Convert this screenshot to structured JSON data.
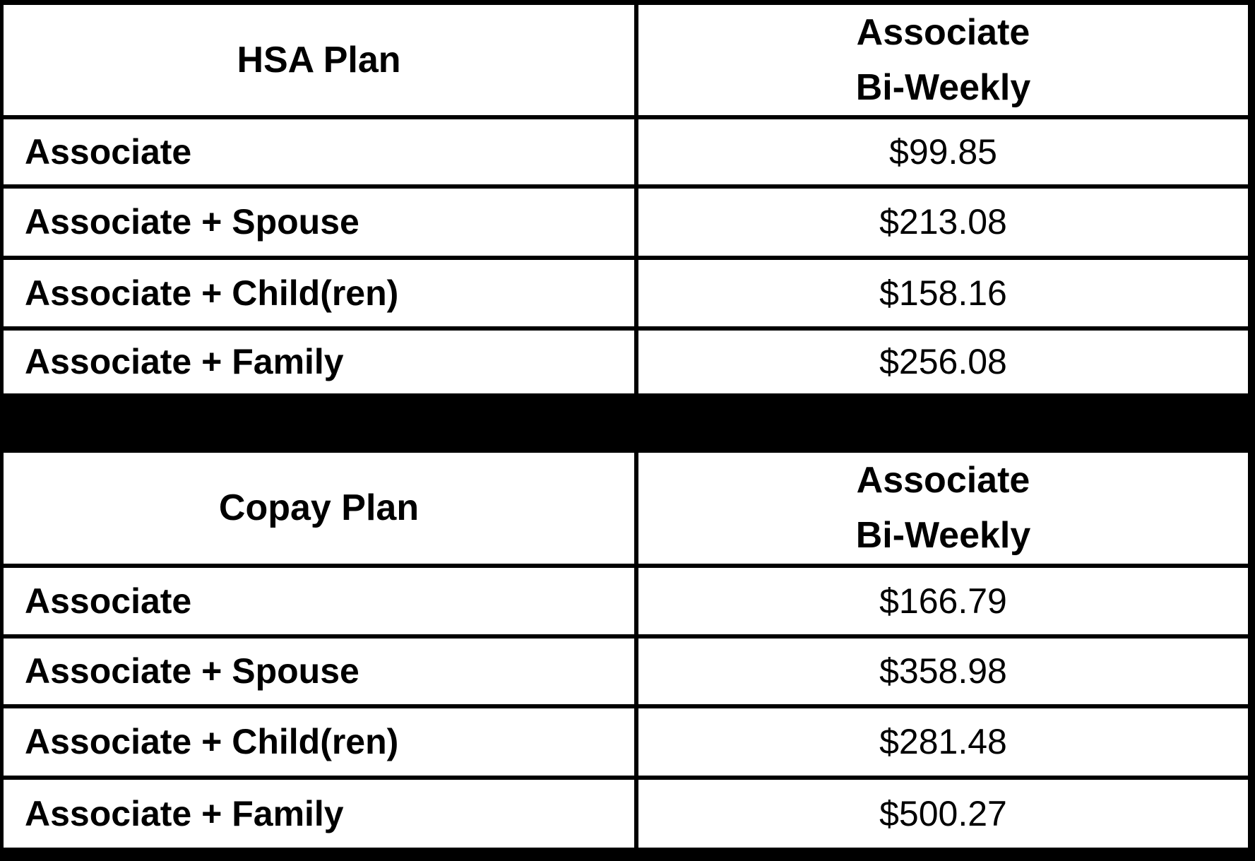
{
  "colors": {
    "background": "#ffffff",
    "border": "#000000",
    "text": "#000000"
  },
  "tables": [
    {
      "plan_label": "HSA Plan",
      "value_header_line1": "Associate",
      "value_header_line2": "Bi-Weekly",
      "rows": [
        {
          "label": "Associate",
          "value": "$99.85"
        },
        {
          "label": "Associate + Spouse",
          "value": "$213.08"
        },
        {
          "label": "Associate + Child(ren)",
          "value": "$158.16"
        },
        {
          "label": "Associate + Family",
          "value": "$256.08"
        }
      ]
    },
    {
      "plan_label": "Copay Plan",
      "value_header_line1": "Associate",
      "value_header_line2": "Bi-Weekly",
      "rows": [
        {
          "label": "Associate",
          "value": "$166.79"
        },
        {
          "label": "Associate + Spouse",
          "value": "$358.98"
        },
        {
          "label": "Associate + Child(ren)",
          "value": "$281.48"
        },
        {
          "label": "Associate + Family",
          "value": "$500.27"
        }
      ]
    }
  ]
}
